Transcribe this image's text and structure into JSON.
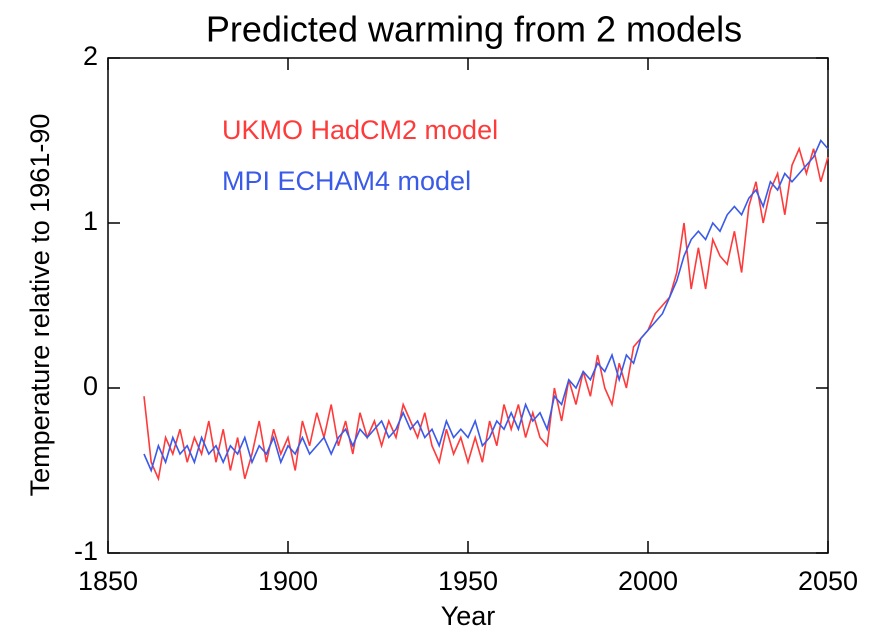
{
  "chart_data": {
    "type": "line",
    "title": "Predicted warming from 2 models",
    "xlabel": "Year",
    "ylabel": "Temperature relative to 1961-90",
    "x": [
      1860,
      1862,
      1864,
      1866,
      1868,
      1870,
      1872,
      1874,
      1876,
      1878,
      1880,
      1882,
      1884,
      1886,
      1888,
      1890,
      1892,
      1894,
      1896,
      1898,
      1900,
      1902,
      1904,
      1906,
      1908,
      1910,
      1912,
      1914,
      1916,
      1918,
      1920,
      1922,
      1924,
      1926,
      1928,
      1930,
      1932,
      1934,
      1936,
      1938,
      1940,
      1942,
      1944,
      1946,
      1948,
      1950,
      1952,
      1954,
      1956,
      1958,
      1960,
      1962,
      1964,
      1966,
      1968,
      1970,
      1972,
      1974,
      1976,
      1978,
      1980,
      1982,
      1984,
      1986,
      1988,
      1990,
      1992,
      1994,
      1996,
      1998,
      2000,
      2002,
      2004,
      2006,
      2008,
      2010,
      2012,
      2014,
      2016,
      2018,
      2020,
      2022,
      2024,
      2026,
      2028,
      2030,
      2032,
      2034,
      2036,
      2038,
      2040,
      2042,
      2044,
      2046,
      2048,
      2050
    ],
    "series": [
      {
        "name": "UKMO HadCM2 model",
        "color": "#ff3a3a",
        "values": [
          -0.05,
          -0.45,
          -0.55,
          -0.3,
          -0.4,
          -0.25,
          -0.45,
          -0.3,
          -0.4,
          -0.2,
          -0.45,
          -0.25,
          -0.5,
          -0.3,
          -0.55,
          -0.4,
          -0.2,
          -0.45,
          -0.25,
          -0.4,
          -0.3,
          -0.5,
          -0.2,
          -0.35,
          -0.15,
          -0.3,
          -0.1,
          -0.35,
          -0.2,
          -0.4,
          -0.15,
          -0.3,
          -0.2,
          -0.35,
          -0.2,
          -0.3,
          -0.1,
          -0.2,
          -0.3,
          -0.15,
          -0.35,
          -0.45,
          -0.25,
          -0.4,
          -0.3,
          -0.45,
          -0.3,
          -0.45,
          -0.2,
          -0.35,
          -0.1,
          -0.25,
          -0.1,
          -0.3,
          -0.15,
          -0.3,
          -0.35,
          0.0,
          -0.2,
          0.05,
          -0.1,
          0.1,
          -0.05,
          0.2,
          0.0,
          -0.1,
          0.15,
          0.0,
          0.25,
          0.3,
          0.35,
          0.45,
          0.5,
          0.55,
          0.7,
          1.0,
          0.6,
          0.85,
          0.6,
          0.9,
          0.8,
          0.75,
          0.95,
          0.7,
          1.1,
          1.25,
          1.0,
          1.2,
          1.3,
          1.05,
          1.35,
          1.45,
          1.3,
          1.45,
          1.25,
          1.4
        ]
      },
      {
        "name": "MPI ECHAM4 model",
        "color": "#3a5ae8",
        "values": [
          -0.4,
          -0.5,
          -0.35,
          -0.45,
          -0.3,
          -0.4,
          -0.35,
          -0.45,
          -0.3,
          -0.4,
          -0.35,
          -0.45,
          -0.35,
          -0.4,
          -0.3,
          -0.45,
          -0.35,
          -0.4,
          -0.3,
          -0.45,
          -0.35,
          -0.4,
          -0.3,
          -0.4,
          -0.35,
          -0.3,
          -0.4,
          -0.3,
          -0.25,
          -0.35,
          -0.25,
          -0.3,
          -0.25,
          -0.2,
          -0.3,
          -0.25,
          -0.15,
          -0.25,
          -0.2,
          -0.3,
          -0.25,
          -0.35,
          -0.2,
          -0.3,
          -0.25,
          -0.3,
          -0.2,
          -0.35,
          -0.3,
          -0.2,
          -0.25,
          -0.15,
          -0.25,
          -0.1,
          -0.2,
          -0.15,
          -0.25,
          -0.05,
          -0.1,
          0.05,
          0.0,
          0.1,
          0.05,
          0.15,
          0.1,
          0.2,
          0.05,
          0.2,
          0.15,
          0.3,
          0.35,
          0.4,
          0.45,
          0.55,
          0.65,
          0.8,
          0.9,
          0.95,
          0.9,
          1.0,
          0.95,
          1.05,
          1.1,
          1.05,
          1.15,
          1.2,
          1.1,
          1.25,
          1.2,
          1.3,
          1.25,
          1.3,
          1.35,
          1.4,
          1.5,
          1.45
        ]
      }
    ],
    "xlim": [
      1850,
      2050
    ],
    "xticks": [
      1850,
      1900,
      1950,
      2000,
      2050
    ],
    "ylim": [
      -1,
      2
    ],
    "yticks": [
      -1,
      0,
      1,
      2
    ]
  }
}
